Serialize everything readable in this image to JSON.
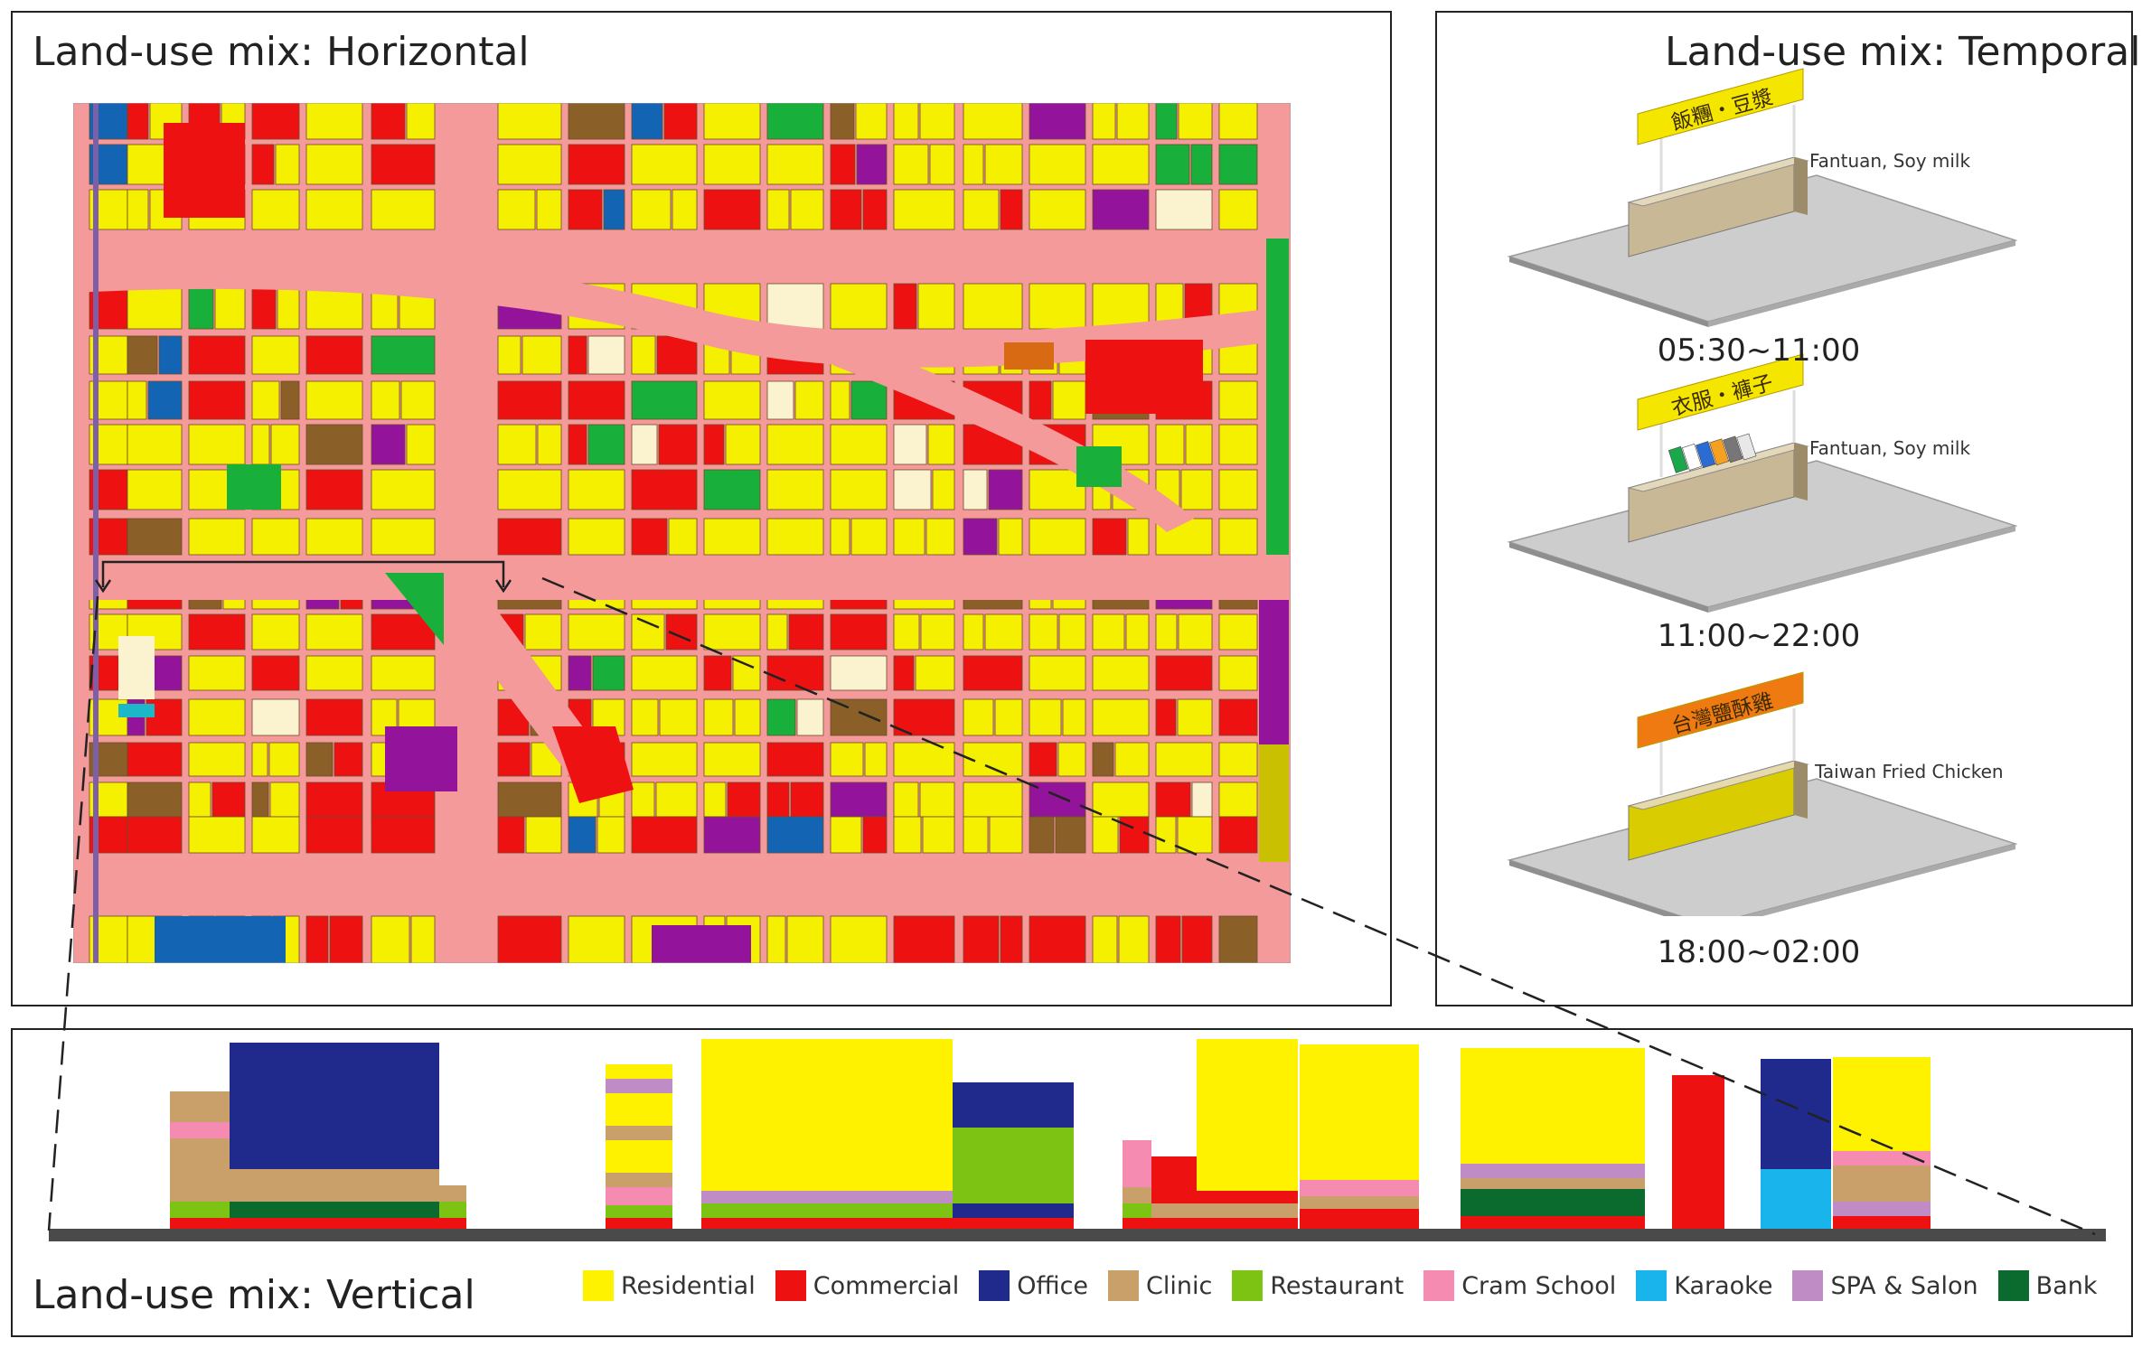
{
  "horizontal": {
    "title": "Land-use mix: Horizontal"
  },
  "temporal": {
    "title": "Land-use mix: Temporal",
    "slots": [
      {
        "time": "05:30~11:00",
        "caption": "Fantuan, Soy milk",
        "sign_text": "飯糰・豆漿",
        "sign_color": "#f5e600",
        "box_color": "#c8b896",
        "contents": "empty"
      },
      {
        "time": "11:00~22:00",
        "caption": "Fantuan, Soy milk",
        "sign_text": "衣服・褲子",
        "sign_color": "#f5e600",
        "box_color": "#c8b896",
        "contents": "clothes"
      },
      {
        "time": "18:00~02:00",
        "caption": "Taiwan Fried Chicken",
        "sign_text": "台灣鹽酥雞",
        "sign_color": "#f07a12",
        "box_color": "#d9cc00",
        "contents": "empty"
      }
    ]
  },
  "vertical": {
    "title": "Land-use mix: Vertical"
  },
  "legend": [
    {
      "label": "Residential",
      "color": "#fff200"
    },
    {
      "label": "Commercial",
      "color": "#ee1111"
    },
    {
      "label": "Office",
      "color": "#1f2a8c"
    },
    {
      "label": "Clinic",
      "color": "#c9a06a"
    },
    {
      "label": "Restaurant",
      "color": "#7cc313"
    },
    {
      "label": "Cram School",
      "color": "#f58bb0"
    },
    {
      "label": "Karaoke",
      "color": "#19b4ec"
    },
    {
      "label": "SPA & Salon",
      "color": "#c08cc6"
    },
    {
      "label": "Bank",
      "color": "#0b6b2e"
    }
  ],
  "map_colors": {
    "road": "#f49a9a",
    "residential": "#f5ef00",
    "commercial": "#ee1111",
    "green": "#18b03a",
    "purple": "#93149a",
    "brown": "#8b6028",
    "blue": "#1464b4",
    "cream": "#fbf3cf",
    "olive": "#c8c000",
    "cyan": "#1cb8c8",
    "orange": "#d86a14"
  }
}
